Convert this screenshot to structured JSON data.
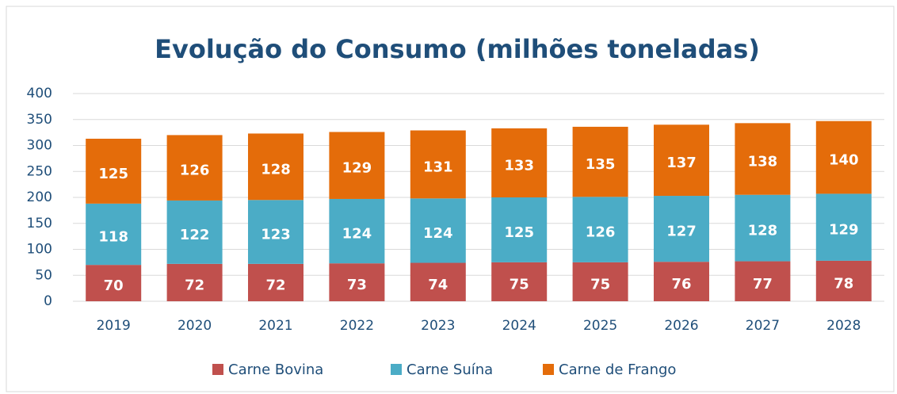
{
  "chart_data": {
    "type": "stacked_bar",
    "title": "Evolução do Consumo (milhões toneladas)",
    "categories": [
      "2019",
      "2020",
      "2021",
      "2022",
      "2023",
      "2024",
      "2025",
      "2026",
      "2027",
      "2028"
    ],
    "series": [
      {
        "name": "Carne Bovina",
        "color": "#c0504d",
        "values": [
          70,
          72,
          72,
          73,
          74,
          75,
          75,
          76,
          77,
          78
        ]
      },
      {
        "name": "Carne Suína",
        "color": "#4bacc6",
        "values": [
          118,
          122,
          123,
          124,
          124,
          125,
          126,
          127,
          128,
          129
        ]
      },
      {
        "name": "Carne de Frango",
        "color": "#e46c0a",
        "values": [
          125,
          126,
          128,
          129,
          131,
          133,
          135,
          137,
          138,
          140
        ]
      }
    ],
    "ylim": [
      0,
      400
    ],
    "yticks": [
      0,
      50,
      100,
      150,
      200,
      250,
      300,
      350,
      400
    ],
    "grid": true,
    "legend": "bottom"
  }
}
